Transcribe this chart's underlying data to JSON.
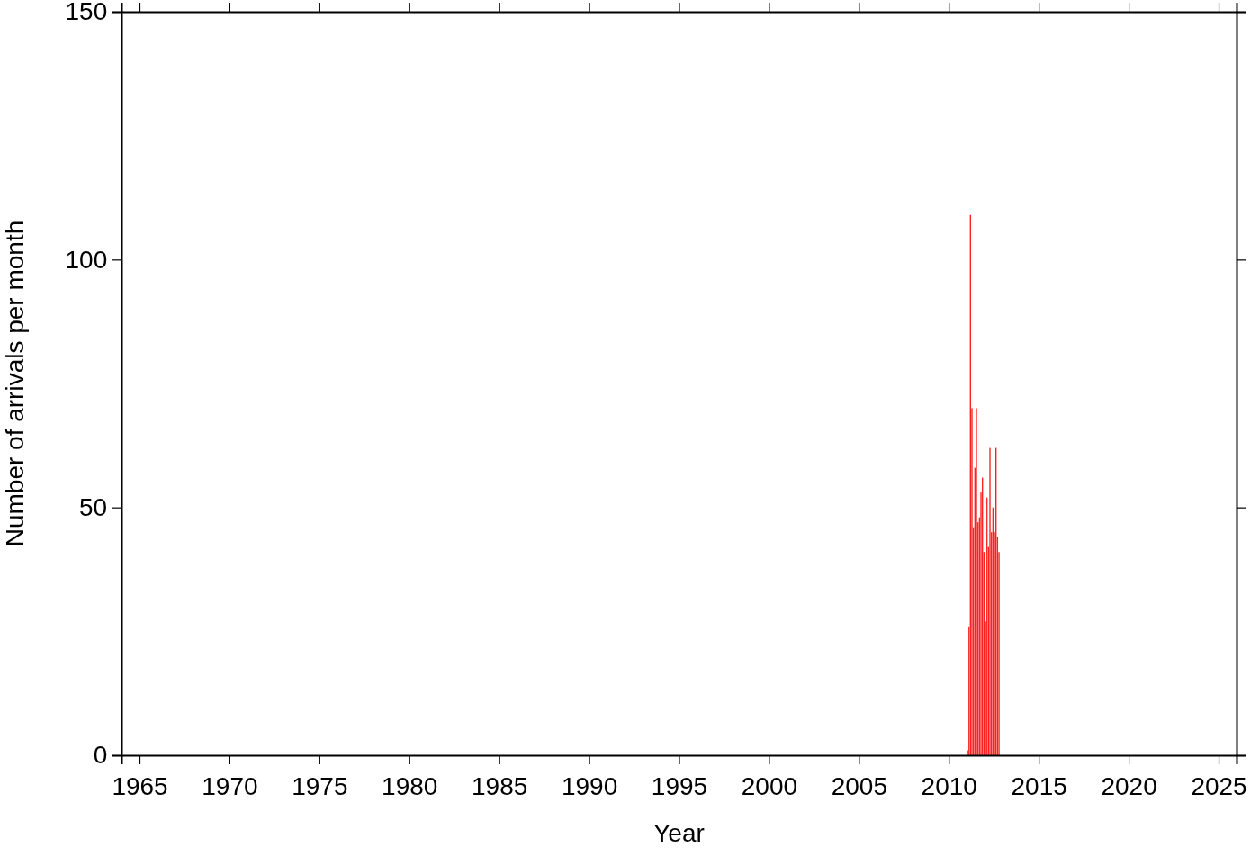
{
  "chart_data": {
    "type": "bar",
    "xlabel": "Year",
    "ylabel": "Number of arrivals per month",
    "x": [
      "2011-01",
      "2011-02",
      "2011-03",
      "2011-04",
      "2011-05",
      "2011-06",
      "2011-07",
      "2011-08",
      "2011-09",
      "2011-10",
      "2011-11",
      "2011-12",
      "2012-01",
      "2012-02",
      "2012-03",
      "2012-04",
      "2012-05",
      "2012-06",
      "2012-07",
      "2012-08",
      "2012-09",
      "2012-10"
    ],
    "values": [
      1,
      26,
      109,
      70,
      46,
      58,
      70,
      47,
      48,
      53,
      56,
      41,
      27,
      52,
      42,
      62,
      45,
      50,
      45,
      62,
      44,
      41
    ],
    "color": "#ff2020",
    "xlim": [
      "1964",
      "2026"
    ],
    "xticks": [
      {
        "value": "1965",
        "label": "1965"
      },
      {
        "value": "1970",
        "label": "1970"
      },
      {
        "value": "1975",
        "label": "1975"
      },
      {
        "value": "1980",
        "label": "1980"
      },
      {
        "value": "1985",
        "label": "1985"
      },
      {
        "value": "1990",
        "label": "1990"
      },
      {
        "value": "1995",
        "label": "1995"
      },
      {
        "value": "2000",
        "label": "2000"
      },
      {
        "value": "2005",
        "label": "2005"
      },
      {
        "value": "2010",
        "label": "2010"
      },
      {
        "value": "2015",
        "label": "2015"
      },
      {
        "value": "2020",
        "label": "2020"
      },
      {
        "value": "2025",
        "label": "2025"
      }
    ],
    "ylim": [
      0,
      150
    ],
    "yticks": [
      0,
      50,
      100,
      150
    ],
    "grid": false
  }
}
